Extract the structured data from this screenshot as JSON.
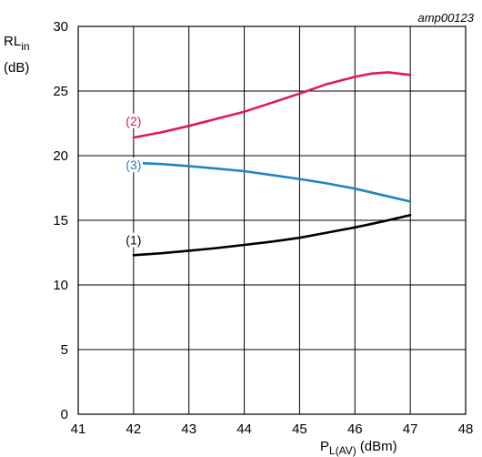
{
  "figure_code": "amp00123",
  "chart_data": {
    "type": "line",
    "title": "",
    "ylabel_main": "RL",
    "ylabel_sub": "in",
    "ylabel_unit": "(dB)",
    "xlabel_main": "P",
    "xlabel_sub": "L(AV)",
    "xlabel_unit": "(dBm)",
    "xlim": [
      41,
      48
    ],
    "ylim": [
      0,
      30
    ],
    "xticks": [
      41,
      42,
      43,
      44,
      45,
      46,
      47,
      48
    ],
    "yticks": [
      0,
      5,
      10,
      15,
      20,
      25,
      30
    ],
    "grid": true,
    "series": [
      {
        "label": "(1)",
        "color": "#000000",
        "points": [
          [
            42,
            12.3
          ],
          [
            42.5,
            12.45
          ],
          [
            43,
            12.65
          ],
          [
            43.5,
            12.85
          ],
          [
            44,
            13.1
          ],
          [
            44.5,
            13.35
          ],
          [
            45,
            13.65
          ],
          [
            45.5,
            14.05
          ],
          [
            46,
            14.45
          ],
          [
            46.5,
            14.9
          ],
          [
            47,
            15.4
          ]
        ]
      },
      {
        "label": "(2)",
        "color": "#e0185a",
        "points": [
          [
            42,
            21.4
          ],
          [
            42.5,
            21.8
          ],
          [
            43,
            22.3
          ],
          [
            43.5,
            22.85
          ],
          [
            44,
            23.4
          ],
          [
            44.5,
            24.1
          ],
          [
            45,
            24.8
          ],
          [
            45.5,
            25.55
          ],
          [
            46,
            26.1
          ],
          [
            46.3,
            26.35
          ],
          [
            46.6,
            26.45
          ],
          [
            47,
            26.25
          ]
        ]
      },
      {
        "label": "(3)",
        "color": "#1c86c3",
        "points": [
          [
            42,
            19.45
          ],
          [
            42.5,
            19.35
          ],
          [
            43,
            19.2
          ],
          [
            43.5,
            19.0
          ],
          [
            44,
            18.8
          ],
          [
            44.5,
            18.5
          ],
          [
            45,
            18.2
          ],
          [
            45.5,
            17.85
          ],
          [
            46,
            17.45
          ],
          [
            46.5,
            16.95
          ],
          [
            47,
            16.45
          ]
        ]
      }
    ],
    "series_label_positions": [
      {
        "label": "(1)",
        "x": 42,
        "y": 13.2
      },
      {
        "label": "(2)",
        "x": 42,
        "y": 22.4
      },
      {
        "label": "(3)",
        "x": 42,
        "y": 19.0
      }
    ]
  }
}
